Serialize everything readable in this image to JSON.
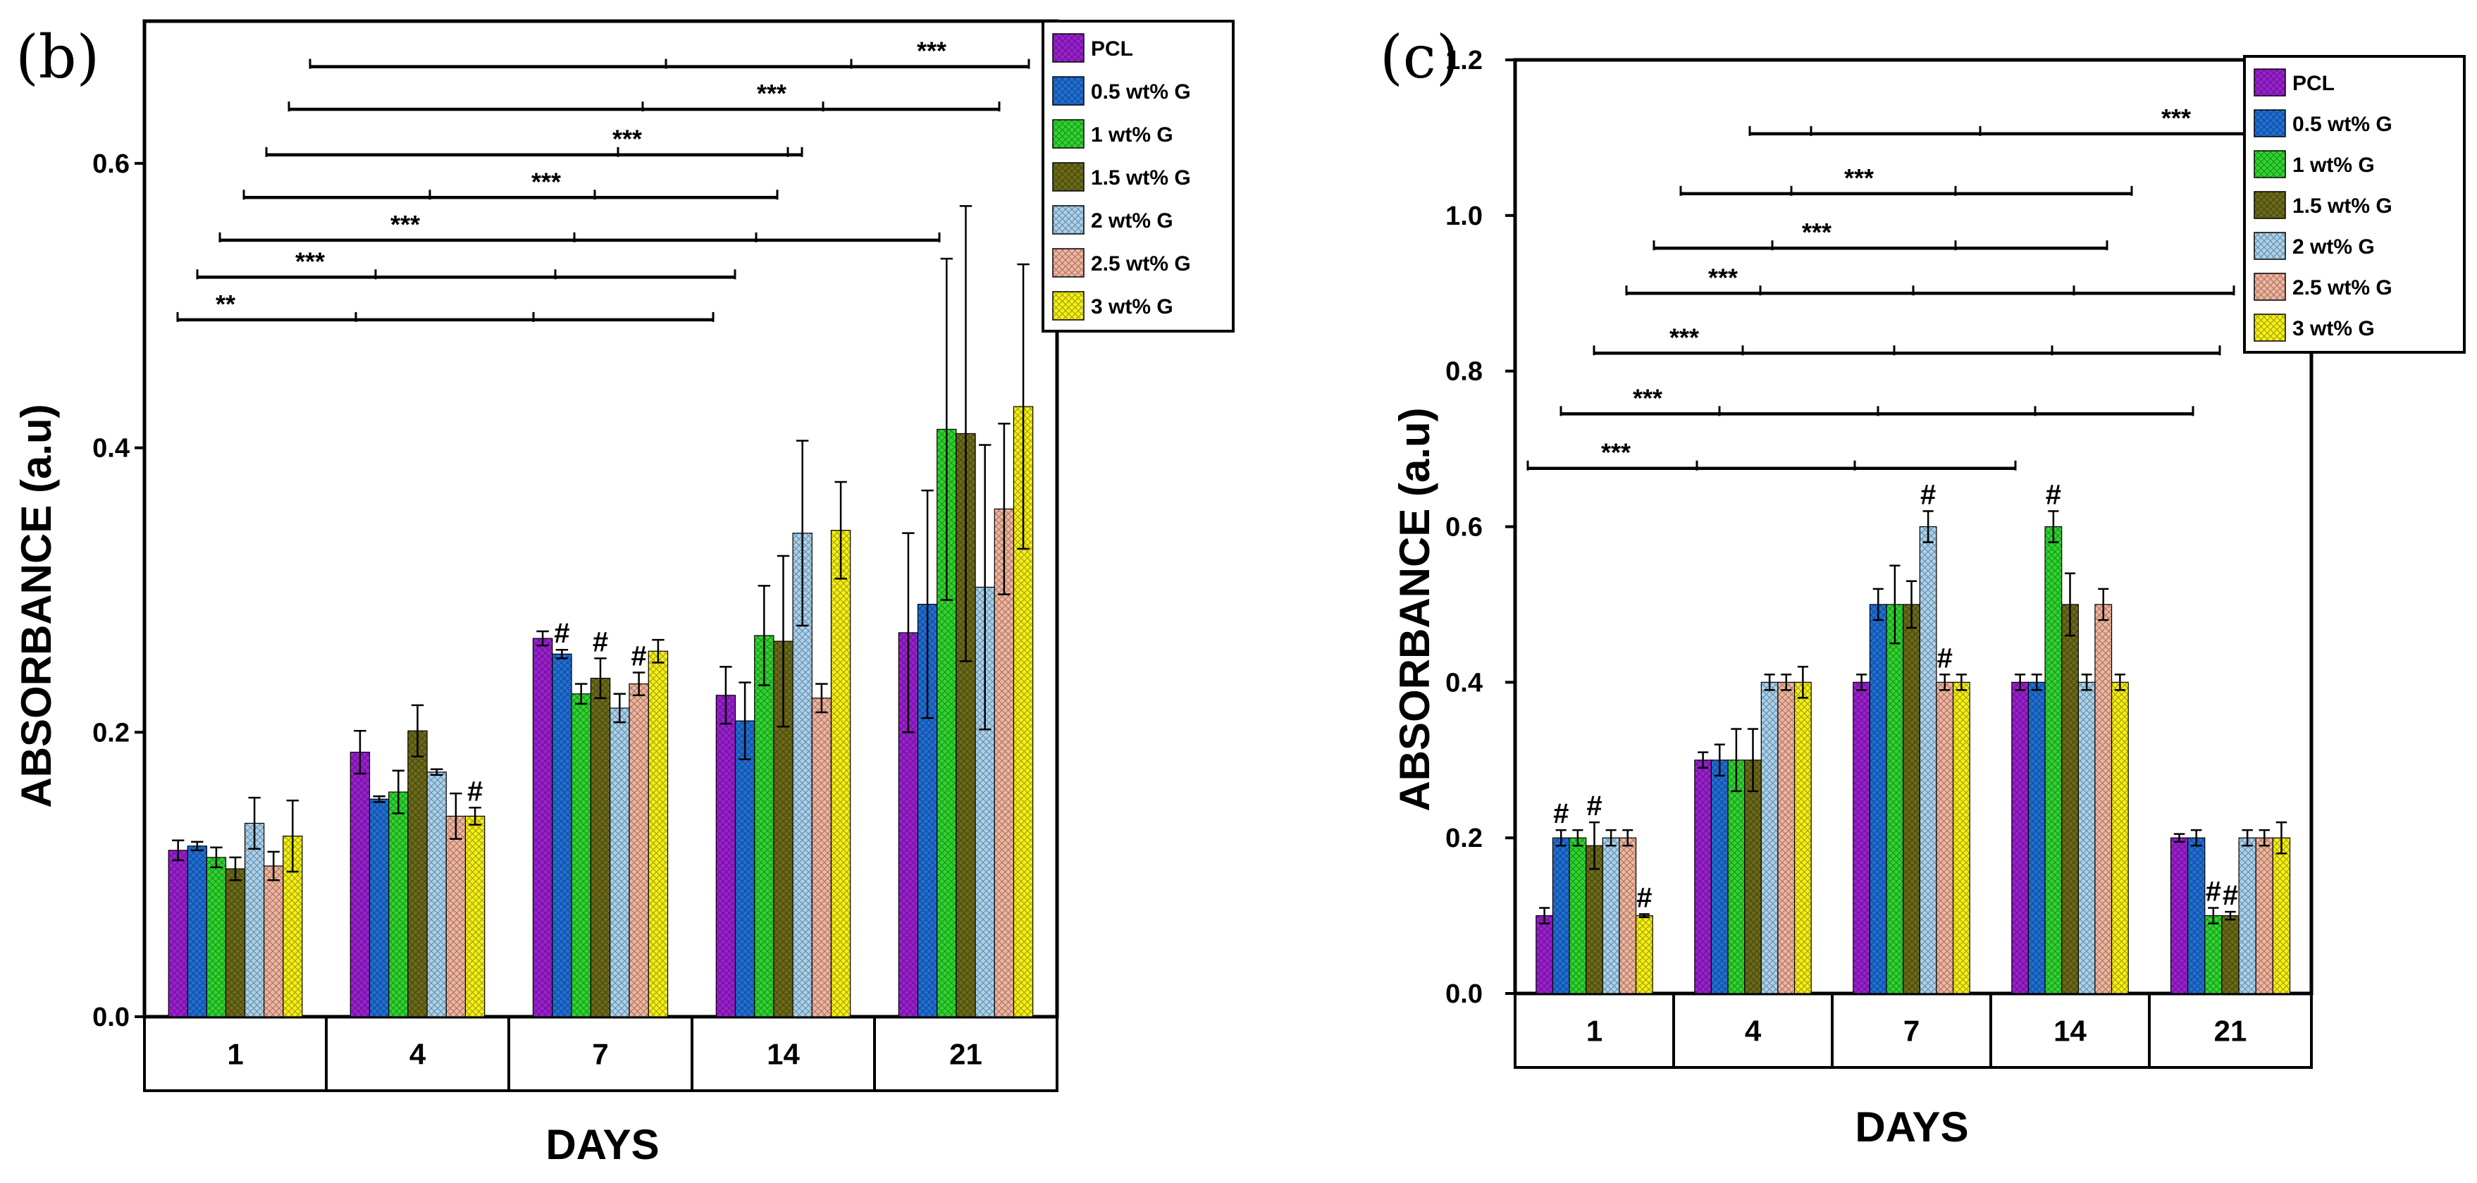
{
  "chart_data": [
    {
      "id": "b",
      "type": "bar",
      "panel_label": "(b)",
      "title": "",
      "xlabel": "DAYS",
      "ylabel": "ABSORBANCE (a.u)",
      "ylim": [
        0,
        0.7
      ],
      "yticks": [
        0.0,
        0.2,
        0.4,
        0.6
      ],
      "ytick_labels": [
        "0.0",
        "0.2",
        "0.4",
        "0.6"
      ],
      "categories": [
        "1",
        "4",
        "7",
        "14",
        "21"
      ],
      "legend_position": "top-right",
      "series": [
        {
          "name": "PCL",
          "color": "#9b1fd1",
          "values": [
            0.117,
            0.186,
            0.266,
            0.226,
            0.27
          ],
          "errors": [
            0.007,
            0.015,
            0.005,
            0.02,
            0.07
          ]
        },
        {
          "name": "0.5 wt% G",
          "color": "#1f6fd6",
          "values": [
            0.12,
            0.153,
            0.255,
            0.208,
            0.29
          ],
          "errors": [
            0.003,
            0.002,
            0.003,
            0.027,
            0.08
          ]
        },
        {
          "name": "1 wt% G",
          "color": "#2ed52e",
          "values": [
            0.112,
            0.158,
            0.227,
            0.268,
            0.413
          ],
          "errors": [
            0.007,
            0.015,
            0.007,
            0.035,
            0.12
          ]
        },
        {
          "name": "1.5 wt% G",
          "color": "#6b6a18",
          "values": [
            0.104,
            0.201,
            0.238,
            0.264,
            0.41
          ],
          "errors": [
            0.008,
            0.018,
            0.014,
            0.06,
            0.16
          ]
        },
        {
          "name": "2 wt% G",
          "color": "#a8d2ee",
          "values": [
            0.136,
            0.172,
            0.217,
            0.34,
            0.302
          ],
          "errors": [
            0.018,
            0.002,
            0.01,
            0.065,
            0.1
          ]
        },
        {
          "name": "2.5 wt% G",
          "color": "#f2b49d",
          "values": [
            0.106,
            0.141,
            0.234,
            0.224,
            0.357
          ],
          "errors": [
            0.01,
            0.016,
            0.008,
            0.01,
            0.06
          ]
        },
        {
          "name": "3 wt% G",
          "color": "#f5ef14",
          "values": [
            0.127,
            0.141,
            0.257,
            0.342,
            0.429
          ],
          "errors": [
            0.025,
            0.006,
            0.008,
            0.034,
            0.1
          ]
        }
      ],
      "hash_marks": [
        {
          "category": "4",
          "series": "3 wt% G",
          "label": "#"
        },
        {
          "category": "7",
          "series": "0.5 wt% G",
          "label": "#"
        },
        {
          "category": "7",
          "series": "1.5 wt% G",
          "label": "#"
        },
        {
          "category": "7",
          "series": "2.5 wt% G",
          "label": "#"
        }
      ],
      "significance_brackets": [
        {
          "label": "**",
          "y": 0.49
        },
        {
          "label": "***",
          "y": 0.52
        },
        {
          "label": "***",
          "y": 0.546
        },
        {
          "label": "***",
          "y": 0.576
        },
        {
          "label": "***",
          "y": 0.606
        },
        {
          "label": "***",
          "y": 0.638
        },
        {
          "label": "***",
          "y": 0.668
        }
      ]
    },
    {
      "id": "c",
      "type": "bar",
      "panel_label": "(c)",
      "title": "",
      "xlabel": "DAYS",
      "ylabel": "ABSORBANCE (a.u)",
      "ylim": [
        0,
        1.2
      ],
      "yticks": [
        0.0,
        0.2,
        0.4,
        0.6,
        0.8,
        1.0,
        1.2
      ],
      "ytick_labels": [
        "0.0",
        "0.2",
        "0.4",
        "0.6",
        "0.8",
        "1.0",
        "1.2"
      ],
      "categories": [
        "1",
        "4",
        "7",
        "14",
        "21"
      ],
      "legend_position": "top-right",
      "series": [
        {
          "name": "PCL",
          "color": "#9b1fd1",
          "values": [
            0.1,
            0.3,
            0.4,
            0.4,
            0.2
          ],
          "errors": [
            0.01,
            0.01,
            0.01,
            0.01,
            0.005
          ]
        },
        {
          "name": "0.5 wt% G",
          "color": "#1f6fd6",
          "values": [
            0.2,
            0.3,
            0.5,
            0.4,
            0.2
          ],
          "errors": [
            0.01,
            0.02,
            0.02,
            0.01,
            0.01
          ]
        },
        {
          "name": "1 wt% G",
          "color": "#2ed52e",
          "values": [
            0.2,
            0.3,
            0.5,
            0.6,
            0.1
          ],
          "errors": [
            0.01,
            0.04,
            0.05,
            0.02,
            0.01
          ]
        },
        {
          "name": "1.5 wt% G",
          "color": "#6b6a18",
          "values": [
            0.19,
            0.3,
            0.5,
            0.5,
            0.1
          ],
          "errors": [
            0.03,
            0.04,
            0.03,
            0.04,
            0.005
          ]
        },
        {
          "name": "2 wt% G",
          "color": "#a8d2ee",
          "values": [
            0.2,
            0.4,
            0.6,
            0.4,
            0.2
          ],
          "errors": [
            0.01,
            0.01,
            0.02,
            0.01,
            0.01
          ]
        },
        {
          "name": "2.5 wt% G",
          "color": "#f2b49d",
          "values": [
            0.2,
            0.4,
            0.4,
            0.5,
            0.2
          ],
          "errors": [
            0.01,
            0.01,
            0.01,
            0.02,
            0.01
          ]
        },
        {
          "name": "3 wt% G",
          "color": "#f5ef14",
          "values": [
            0.1,
            0.4,
            0.4,
            0.4,
            0.2
          ],
          "errors": [
            0.002,
            0.02,
            0.01,
            0.01,
            0.02
          ]
        }
      ],
      "hash_marks": [
        {
          "category": "1",
          "series": "0.5 wt% G",
          "label": "#"
        },
        {
          "category": "1",
          "series": "1.5 wt% G",
          "label": "#"
        },
        {
          "category": "1",
          "series": "3 wt% G",
          "label": "#"
        },
        {
          "category": "7",
          "series": "2 wt% G",
          "label": "#"
        },
        {
          "category": "7",
          "series": "2.5 wt% G",
          "label": "#"
        },
        {
          "category": "14",
          "series": "1 wt% G",
          "label": "#"
        },
        {
          "category": "21",
          "series": "1 wt% G",
          "label": "#"
        },
        {
          "category": "21",
          "series": "1.5 wt% G",
          "label": "#"
        }
      ],
      "significance_brackets": [
        {
          "label": "***",
          "y": 0.675
        },
        {
          "label": "***",
          "y": 0.745
        },
        {
          "label": "***",
          "y": 0.823
        },
        {
          "label": "***",
          "y": 0.9
        },
        {
          "label": "***",
          "y": 0.958
        },
        {
          "label": "***",
          "y": 1.028
        },
        {
          "label": "***",
          "y": 1.105
        }
      ]
    }
  ]
}
